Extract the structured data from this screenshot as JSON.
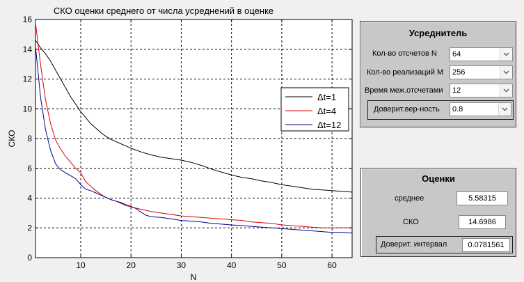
{
  "chart_data": {
    "type": "line",
    "title": "СКО оценки среднего от числа усреднений в оценке",
    "xlabel": "N",
    "ylabel": "СКО",
    "xlim": [
      1,
      64
    ],
    "ylim": [
      0,
      16
    ],
    "xticks": [
      10,
      20,
      30,
      40,
      50,
      60
    ],
    "yticks": [
      0,
      2,
      4,
      6,
      8,
      10,
      12,
      14,
      16
    ],
    "grid": true,
    "legend_position": "right",
    "series": [
      {
        "name": "Δt=1",
        "color": "#000000",
        "points": [
          [
            1,
            14.6
          ],
          [
            2,
            14.1
          ],
          [
            3,
            13.7
          ],
          [
            4,
            13.2
          ],
          [
            5,
            12.6
          ],
          [
            6,
            12.0
          ],
          [
            7,
            11.4
          ],
          [
            8,
            10.8
          ],
          [
            9,
            10.3
          ],
          [
            10,
            9.8
          ],
          [
            11,
            9.4
          ],
          [
            12,
            9.0
          ],
          [
            13,
            8.7
          ],
          [
            14,
            8.4
          ],
          [
            15,
            8.15
          ],
          [
            16,
            7.95
          ],
          [
            17,
            7.8
          ],
          [
            18,
            7.65
          ],
          [
            19,
            7.5
          ],
          [
            20,
            7.35
          ],
          [
            22,
            7.1
          ],
          [
            24,
            6.9
          ],
          [
            26,
            6.75
          ],
          [
            28,
            6.65
          ],
          [
            30,
            6.55
          ],
          [
            32,
            6.4
          ],
          [
            34,
            6.2
          ],
          [
            36,
            5.95
          ],
          [
            38,
            5.75
          ],
          [
            40,
            5.55
          ],
          [
            42,
            5.4
          ],
          [
            44,
            5.3
          ],
          [
            46,
            5.15
          ],
          [
            48,
            5.05
          ],
          [
            50,
            4.9
          ],
          [
            52,
            4.8
          ],
          [
            54,
            4.7
          ],
          [
            56,
            4.6
          ],
          [
            58,
            4.55
          ],
          [
            60,
            4.5
          ],
          [
            62,
            4.45
          ],
          [
            64,
            4.4
          ]
        ]
      },
      {
        "name": "Δt=4",
        "color": "#e00000",
        "points": [
          [
            1,
            15.8
          ],
          [
            2,
            13.0
          ],
          [
            3,
            10.6
          ],
          [
            4,
            9.0
          ],
          [
            5,
            7.9
          ],
          [
            6,
            7.3
          ],
          [
            7,
            6.8
          ],
          [
            8,
            6.4
          ],
          [
            9,
            6.0
          ],
          [
            10,
            5.7
          ],
          [
            11,
            5.1
          ],
          [
            12,
            4.8
          ],
          [
            13,
            4.5
          ],
          [
            14,
            4.25
          ],
          [
            15,
            4.05
          ],
          [
            16,
            3.9
          ],
          [
            17,
            3.8
          ],
          [
            18,
            3.65
          ],
          [
            19,
            3.5
          ],
          [
            20,
            3.4
          ],
          [
            22,
            3.25
          ],
          [
            24,
            3.1
          ],
          [
            26,
            3.0
          ],
          [
            28,
            2.9
          ],
          [
            30,
            2.8
          ],
          [
            32,
            2.75
          ],
          [
            34,
            2.7
          ],
          [
            36,
            2.65
          ],
          [
            38,
            2.6
          ],
          [
            40,
            2.55
          ],
          [
            42,
            2.5
          ],
          [
            44,
            2.4
          ],
          [
            46,
            2.35
          ],
          [
            48,
            2.3
          ],
          [
            50,
            2.2
          ],
          [
            52,
            2.15
          ],
          [
            54,
            2.1
          ],
          [
            56,
            2.05
          ],
          [
            58,
            2.0
          ],
          [
            60,
            2.0
          ],
          [
            62,
            2.0
          ],
          [
            64,
            2.0
          ]
        ]
      },
      {
        "name": "Δt=12",
        "color": "#000090",
        "points": [
          [
            1,
            14.2
          ],
          [
            2,
            10.8
          ],
          [
            3,
            8.6
          ],
          [
            4,
            7.2
          ],
          [
            5,
            6.3
          ],
          [
            6,
            5.9
          ],
          [
            7,
            5.7
          ],
          [
            8,
            5.5
          ],
          [
            9,
            5.3
          ],
          [
            10,
            4.9
          ],
          [
            11,
            4.6
          ],
          [
            12,
            4.5
          ],
          [
            13,
            4.35
          ],
          [
            14,
            4.2
          ],
          [
            15,
            4.05
          ],
          [
            16,
            3.9
          ],
          [
            17,
            3.8
          ],
          [
            18,
            3.7
          ],
          [
            19,
            3.55
          ],
          [
            20,
            3.45
          ],
          [
            21,
            3.3
          ],
          [
            22,
            3.05
          ],
          [
            23,
            2.85
          ],
          [
            24,
            2.75
          ],
          [
            26,
            2.7
          ],
          [
            28,
            2.6
          ],
          [
            30,
            2.5
          ],
          [
            32,
            2.45
          ],
          [
            34,
            2.4
          ],
          [
            36,
            2.3
          ],
          [
            38,
            2.25
          ],
          [
            40,
            2.2
          ],
          [
            42,
            2.15
          ],
          [
            44,
            2.1
          ],
          [
            46,
            2.05
          ],
          [
            48,
            2.0
          ],
          [
            50,
            1.95
          ],
          [
            52,
            1.9
          ],
          [
            54,
            1.85
          ],
          [
            56,
            1.8
          ],
          [
            58,
            1.75
          ],
          [
            60,
            1.7
          ],
          [
            62,
            1.7
          ],
          [
            64,
            1.65
          ]
        ]
      }
    ]
  },
  "averager": {
    "title": "Усреднитель",
    "fields": [
      {
        "label": "Кол-во отсчетов N",
        "value": "64"
      },
      {
        "label": "Кол-во реализаций M",
        "value": "256"
      },
      {
        "label": "Время меж.отсчетами",
        "value": "12"
      },
      {
        "label": "Доверит.вер-ность",
        "value": "0.8"
      }
    ]
  },
  "estimates": {
    "title": "Оценки",
    "mean_label": "среднее",
    "mean_value": "5.58315",
    "sko_label": "СКО",
    "sko_value": "14.6986",
    "interval_label": "Доверит. интервал",
    "interval_value": "0.0781561"
  },
  "icons": {
    "dropdown": "chevron-down-icon"
  }
}
